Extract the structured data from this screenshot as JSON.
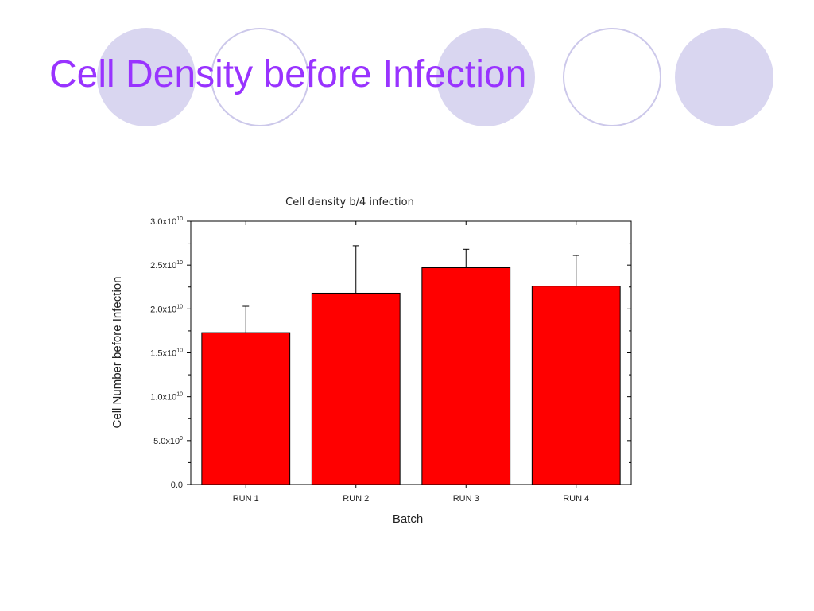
{
  "slide": {
    "title": "Cell Density before Infection",
    "title_color": "#9933ff",
    "decor_fill_color": "#d9d6f0",
    "decor_ring_color": "#ccc8ea"
  },
  "chart_data": {
    "type": "bar",
    "title": "Cell density b/4 infection",
    "xlabel": "Batch",
    "ylabel": "Cell Number before Infection",
    "categories": [
      "RUN 1",
      "RUN 2",
      "RUN 3",
      "RUN 4"
    ],
    "values": [
      17300000000.0,
      21800000000.0,
      24700000000.0,
      22600000000.0
    ],
    "error_upper": [
      3000000000.0,
      5400000000.0,
      2100000000.0,
      3500000000.0
    ],
    "ylim": [
      0,
      30000000000.0
    ],
    "y_ticks": [
      {
        "value": 0,
        "mantissa": "0.0",
        "exp": ""
      },
      {
        "value": 5000000000.0,
        "mantissa": "5.0x10",
        "exp": "9"
      },
      {
        "value": 10000000000.0,
        "mantissa": "1.0x10",
        "exp": "10"
      },
      {
        "value": 15000000000.0,
        "mantissa": "1.5x10",
        "exp": "10"
      },
      {
        "value": 20000000000.0,
        "mantissa": "2.0x10",
        "exp": "10"
      },
      {
        "value": 25000000000.0,
        "mantissa": "2.5x10",
        "exp": "10"
      },
      {
        "value": 30000000000.0,
        "mantissa": "3.0x10",
        "exp": "10"
      }
    ],
    "bar_color": "#ff0000",
    "grid": false,
    "legend": "none"
  }
}
